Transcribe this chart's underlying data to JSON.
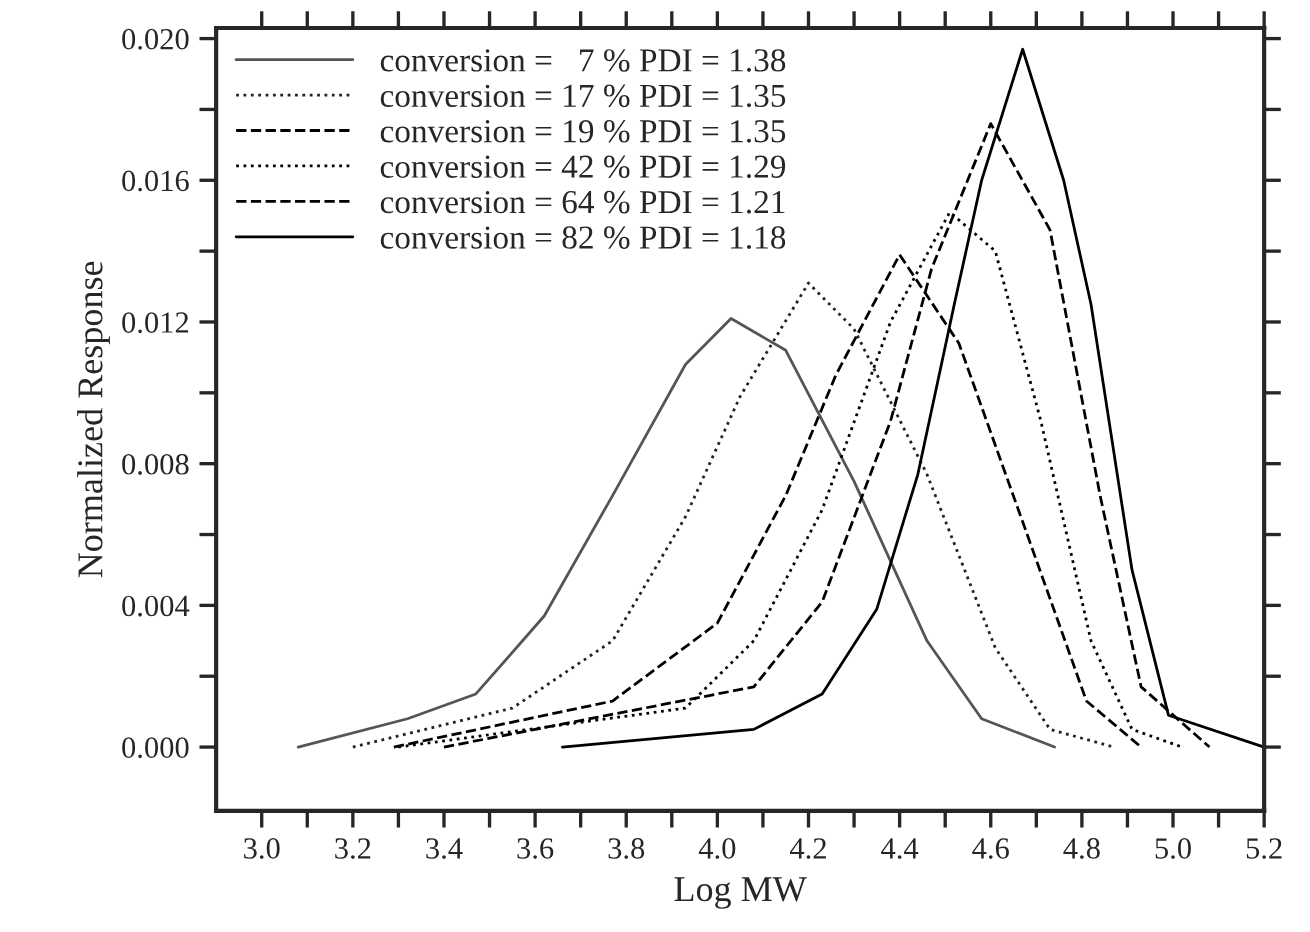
{
  "chart_data": {
    "type": "line",
    "xlabel": "Log MW",
    "ylabel": "Normalized Response",
    "xlim": [
      2.9,
      5.2
    ],
    "ylim": [
      -0.0018,
      0.0203
    ],
    "xticks": [
      {
        "value": 3.0,
        "label": "3.0"
      },
      {
        "value": 3.1,
        "label": null
      },
      3.2,
      {
        "value": 3.3,
        "label": null
      },
      3.4,
      {
        "value": 3.5,
        "label": null
      },
      3.6,
      {
        "value": 3.7,
        "label": null
      },
      3.8,
      {
        "value": 3.9,
        "label": null
      },
      {
        "value": 4.0,
        "label": "4.0"
      },
      {
        "value": 4.1,
        "label": null
      },
      4.2,
      {
        "value": 4.3,
        "label": null
      },
      4.4,
      {
        "value": 4.5,
        "label": null
      },
      4.6,
      {
        "value": 4.7,
        "label": null
      },
      4.8,
      {
        "value": 4.9,
        "label": null
      },
      {
        "value": 5.0,
        "label": "5.0"
      },
      {
        "value": 5.1,
        "label": null
      },
      5.2
    ],
    "yticks": [
      {
        "value": 0.0,
        "label": "0.000"
      },
      {
        "value": 0.002,
        "label": null
      },
      {
        "value": 0.004,
        "label": "0.004"
      },
      {
        "value": 0.006,
        "label": null
      },
      {
        "value": 0.008,
        "label": "0.008"
      },
      {
        "value": 0.01,
        "label": null
      },
      {
        "value": 0.012,
        "label": "0.012"
      },
      {
        "value": 0.014,
        "label": null
      },
      {
        "value": 0.016,
        "label": "0.016"
      },
      {
        "value": 0.018,
        "label": null
      },
      {
        "value": 0.02,
        "label": "0.020"
      }
    ],
    "legend": "top left",
    "grid": false,
    "marker": "none",
    "series": [
      {
        "name": "conversion =   7 % PDI = 1.38",
        "color": "#555555",
        "line_style": "solid",
        "x": [
          3.08,
          3.32,
          3.47,
          3.62,
          3.77,
          3.93,
          4.03,
          4.15,
          4.3,
          4.46,
          4.58,
          4.74
        ],
        "values": [
          0.0,
          0.0008,
          0.0015,
          0.0037,
          0.0071,
          0.0108,
          0.0121,
          0.0112,
          0.0075,
          0.003,
          0.0008,
          0.0
        ]
      },
      {
        "name": "conversion = 17 % PDI = 1.35",
        "color": "#222222",
        "line_style": "dotted",
        "x": [
          3.2,
          3.55,
          3.77,
          3.93,
          4.05,
          4.2,
          4.3,
          4.46,
          4.61,
          4.73,
          4.87
        ],
        "values": [
          0.0,
          0.0011,
          0.003,
          0.0065,
          0.0099,
          0.0131,
          0.0118,
          0.0077,
          0.0028,
          0.0005,
          0.0
        ]
      },
      {
        "name": "conversion = 19 % PDI = 1.35",
        "color": "#000000",
        "line_style": "dashed",
        "x": [
          3.29,
          3.77,
          4.0,
          4.15,
          4.26,
          4.4,
          4.53,
          4.68,
          4.81,
          4.93
        ],
        "values": [
          0.0,
          0.0013,
          0.0035,
          0.0071,
          0.0105,
          0.0139,
          0.0114,
          0.006,
          0.0013,
          0.0
        ]
      },
      {
        "name": "conversion = 42 % PDI = 1.29",
        "color": "#000000",
        "line_style": "dotted",
        "x": [
          3.3,
          3.93,
          4.08,
          4.23,
          4.38,
          4.51,
          4.61,
          4.71,
          4.82,
          4.91,
          5.02
        ],
        "values": [
          0.0,
          0.0011,
          0.003,
          0.0067,
          0.012,
          0.0151,
          0.014,
          0.0092,
          0.003,
          0.0005,
          0.0
        ]
      },
      {
        "name": "conversion = 64 % PDI = 1.21",
        "color": "#000000",
        "line_style": "dashed",
        "x": [
          3.4,
          4.08,
          4.23,
          4.38,
          4.47,
          4.6,
          4.73,
          4.84,
          4.93,
          5.08
        ],
        "values": [
          0.0,
          0.0017,
          0.0041,
          0.0092,
          0.0135,
          0.0176,
          0.0146,
          0.0071,
          0.0017,
          0.0
        ]
      },
      {
        "name": "conversion = 82 % PDI = 1.18",
        "color": "#000000",
        "line_style": "solid",
        "x": [
          3.66,
          4.08,
          4.23,
          4.35,
          4.44,
          4.52,
          4.58,
          4.67,
          4.76,
          4.82,
          4.91,
          4.99,
          5.2
        ],
        "values": [
          0.0,
          0.0005,
          0.0015,
          0.0039,
          0.0077,
          0.0125,
          0.016,
          0.0197,
          0.016,
          0.0125,
          0.005,
          0.0009,
          0.0
        ]
      }
    ]
  }
}
